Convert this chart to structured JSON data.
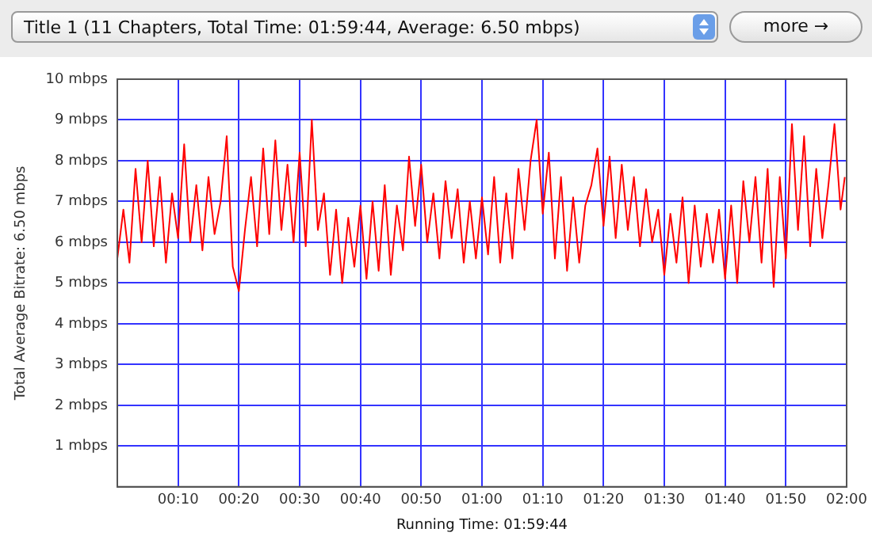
{
  "chart_data": {
    "type": "line",
    "title": "Title 1 (11 Chapters, Total Time: 01:59:44, Average: 6.50 mbps)",
    "xlabel": "Running Time: 01:59:44",
    "ylabel": "Total Average Bitrate: 6.50 mbps",
    "annotations": [
      "more →"
    ],
    "x": [
      0,
      1,
      2,
      3,
      4,
      5,
      6,
      7,
      8,
      9,
      10,
      11,
      12,
      13,
      14,
      15,
      16,
      17,
      18,
      19,
      20,
      21,
      22,
      23,
      24,
      25,
      26,
      27,
      28,
      29,
      30,
      31,
      32,
      33,
      34,
      35,
      36,
      37,
      38,
      39,
      40,
      41,
      42,
      43,
      44,
      45,
      46,
      47,
      48,
      49,
      50,
      51,
      52,
      53,
      54,
      55,
      56,
      57,
      58,
      59,
      60,
      61,
      62,
      63,
      64,
      65,
      66,
      67,
      68,
      69,
      70,
      71,
      72,
      73,
      74,
      75,
      76,
      77,
      78,
      79,
      80,
      81,
      82,
      83,
      84,
      85,
      86,
      87,
      88,
      89,
      90,
      91,
      92,
      93,
      94,
      95,
      96,
      97,
      98,
      99,
      100,
      101,
      102,
      103,
      104,
      105,
      106,
      107,
      108,
      109,
      110,
      111,
      112,
      113,
      114,
      115,
      116,
      117,
      118,
      119,
      119.7
    ],
    "series": [
      {
        "color": "#ff0000",
        "values": [
          5.6,
          6.8,
          5.5,
          7.8,
          6.0,
          8.0,
          5.9,
          7.6,
          5.5,
          7.2,
          6.1,
          8.4,
          6.0,
          7.4,
          5.8,
          7.6,
          6.2,
          7.0,
          8.6,
          5.4,
          4.8,
          6.3,
          7.6,
          5.9,
          8.3,
          6.2,
          8.5,
          6.3,
          7.9,
          6.0,
          8.2,
          5.9,
          9.0,
          6.3,
          7.2,
          5.2,
          6.8,
          5.0,
          6.6,
          5.4,
          6.9,
          5.1,
          7.0,
          5.3,
          7.4,
          5.2,
          6.9,
          5.8,
          8.1,
          6.4,
          7.9,
          6.0,
          7.2,
          5.6,
          7.5,
          6.1,
          7.3,
          5.5,
          7.0,
          5.6,
          7.1,
          5.7,
          7.6,
          5.5,
          7.2,
          5.6,
          7.8,
          6.3,
          8.0,
          9.0,
          6.7,
          8.2,
          5.6,
          7.6,
          5.3,
          7.1,
          5.5,
          6.9,
          7.4,
          8.3,
          6.4,
          8.1,
          6.1,
          7.9,
          6.3,
          7.6,
          5.9,
          7.3,
          6.0,
          6.8,
          5.2,
          6.7,
          5.5,
          7.1,
          5.0,
          6.9,
          5.4,
          6.7,
          5.5,
          6.8,
          5.1,
          6.9,
          5.0,
          7.5,
          6.0,
          7.6,
          5.5,
          7.8,
          4.9,
          7.6,
          5.6,
          8.9,
          6.3,
          8.6,
          5.9,
          7.8,
          6.1,
          7.4,
          8.9,
          6.8,
          7.6
        ]
      }
    ],
    "xlim": [
      0,
      120
    ],
    "xticks": [
      {
        "value": 10,
        "label": "00:10"
      },
      {
        "value": 20,
        "label": "00:20"
      },
      {
        "value": 30,
        "label": "00:30"
      },
      {
        "value": 40,
        "label": "00:40"
      },
      {
        "value": 50,
        "label": "00:50"
      },
      {
        "value": 60,
        "label": "01:00"
      },
      {
        "value": 70,
        "label": "01:10"
      },
      {
        "value": 80,
        "label": "01:20"
      },
      {
        "value": 90,
        "label": "01:30"
      },
      {
        "value": 100,
        "label": "01:40"
      },
      {
        "value": 110,
        "label": "01:50"
      },
      {
        "value": 120,
        "label": "02:00"
      }
    ],
    "ylim": [
      0,
      10
    ],
    "yticks": [
      {
        "value": 1,
        "label": "1 mbps"
      },
      {
        "value": 2,
        "label": "2 mbps"
      },
      {
        "value": 3,
        "label": "3 mbps"
      },
      {
        "value": 4,
        "label": "4 mbps"
      },
      {
        "value": 5,
        "label": "5 mbps"
      },
      {
        "value": 6,
        "label": "6 mbps"
      },
      {
        "value": 7,
        "label": "7 mbps"
      },
      {
        "value": 8,
        "label": "8 mbps"
      },
      {
        "value": 9,
        "label": "9 mbps"
      },
      {
        "value": 10,
        "label": "10 mbps"
      }
    ],
    "grid": true,
    "marker": "none",
    "line_style": "solid"
  }
}
